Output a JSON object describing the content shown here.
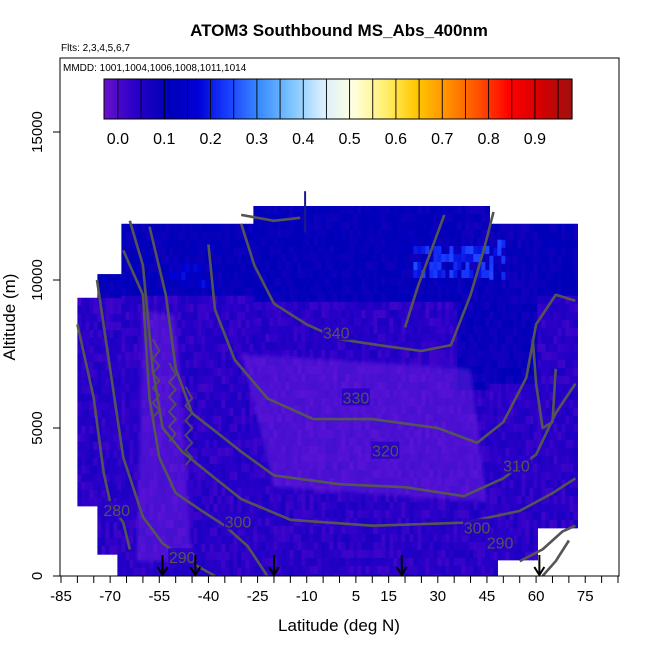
{
  "chart_data": {
    "type": "heatmap",
    "title": "ATOM3 Southbound MS_Abs_400nm",
    "subtitle_flights": "Flts: 2,3,4,5,6,7",
    "subtitle_dates": "MMDD: 1001,1004,1006,1008,1011,1014",
    "xlabel": "Latitude (deg N)",
    "ylabel": "Altitude (m)",
    "xlim": [
      -85,
      85
    ],
    "ylim": [
      0,
      17500
    ],
    "x_tick_labels": [
      "-85",
      "-70",
      "-55",
      "-40",
      "-25",
      "-10",
      "5",
      "15",
      "30",
      "45",
      "60",
      "75"
    ],
    "x_tick_values": [
      -85,
      -70,
      -55,
      -40,
      -25,
      -10,
      5,
      15,
      30,
      45,
      60,
      75
    ],
    "x_minor_ticks": [
      -85,
      -80,
      -75,
      -70,
      -65,
      -60,
      -55,
      -50,
      -45,
      -40,
      -35,
      -30,
      -25,
      -20,
      -15,
      -10,
      -5,
      0,
      5,
      10,
      15,
      20,
      25,
      30,
      35,
      40,
      45,
      50,
      55,
      60,
      65,
      70,
      75,
      80,
      85
    ],
    "y_tick_values": [
      0,
      5000,
      10000,
      15000
    ],
    "y_tick_labels": [
      "0",
      "5000",
      "10000",
      "15000"
    ],
    "colorbar": {
      "range": [
        -0.03,
        0.98
      ],
      "tick_values": [
        0.0,
        0.1,
        0.2,
        0.3,
        0.4,
        0.5,
        0.6,
        0.7,
        0.8,
        0.9
      ],
      "tick_labels": [
        "0.0",
        "0.1",
        "0.2",
        "0.3",
        "0.4",
        "0.5",
        "0.6",
        "0.7",
        "0.8",
        "0.9"
      ],
      "colors": [
        "#6a10cc",
        "#2a00c8",
        "#0000b8",
        "#0000d6",
        "#1a40ff",
        "#3a8cff",
        "#7cc4ff",
        "#d8eeff",
        "#ffffe0",
        "#fff070",
        "#ffc800",
        "#ff9000",
        "#ff5000",
        "#ff0000",
        "#d40000",
        "#a01010"
      ]
    },
    "field": {
      "x_range": [
        -80,
        72
      ],
      "y_range": [
        0,
        12500
      ],
      "background_value": 0.04,
      "high_altitude_value": 0.1,
      "low_value_regions_color": "#7a1ee0",
      "notable_regions": [
        {
          "lat": [
            22,
            50
          ],
          "alt": [
            10200,
            11400
          ],
          "value": 0.22
        },
        {
          "lat": [
            -52,
            -40
          ],
          "alt": [
            9800,
            10600
          ],
          "value": 0.16
        }
      ]
    },
    "contours": [
      {
        "label": "280",
        "label_lat": -68,
        "label_alt": 2200
      },
      {
        "label": "290",
        "label_lat": -48,
        "label_alt": 600
      },
      {
        "label": "290",
        "label_lat": 49,
        "label_alt": 1100
      },
      {
        "label": "300",
        "label_lat": -31,
        "label_alt": 1800
      },
      {
        "label": "300",
        "label_lat": 42,
        "label_alt": 1600
      },
      {
        "label": "310",
        "label_lat": 54,
        "label_alt": 3700
      },
      {
        "label": "320",
        "label_lat": 14,
        "label_alt": 4200
      },
      {
        "label": "330",
        "label_lat": 5,
        "label_alt": 6000
      },
      {
        "label": "340",
        "label_lat": -1,
        "label_alt": 8200
      }
    ],
    "arrow_latitudes": [
      -54,
      -44,
      -20,
      19,
      61
    ],
    "grid": false,
    "legend": "top-inside colorbar"
  }
}
